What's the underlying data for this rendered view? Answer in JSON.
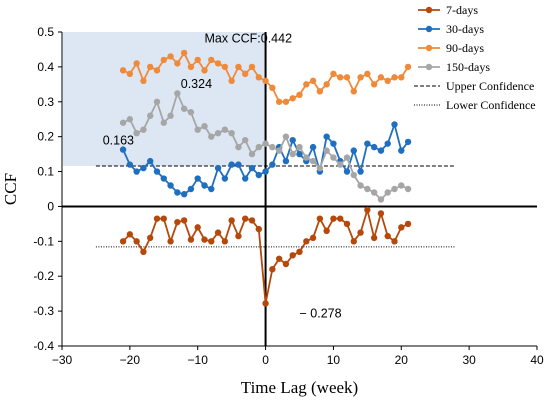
{
  "chart_data": {
    "type": "line",
    "xlabel": "Time  Lag (week)",
    "ylabel": "CCF",
    "xlim": [
      -30,
      40
    ],
    "ylim": [
      -0.4,
      0.5
    ],
    "xticks": [
      -30,
      -20,
      -10,
      0,
      10,
      20,
      30,
      40
    ],
    "xtick_labels": [
      "−30",
      "−20",
      "−10",
      "0",
      "10",
      "20",
      "30",
      "40"
    ],
    "yticks": [
      -0.4,
      -0.3,
      -0.2,
      -0.1,
      0,
      0.1,
      0.2,
      0.3,
      0.4,
      0.5
    ],
    "ytick_labels": [
      "-0.4",
      "-0.3",
      "-0.2",
      "-0.1",
      "0",
      "0.1",
      "0.2",
      "0.3",
      "0.4",
      "0.5"
    ],
    "grid": false,
    "legend_position": "top-right",
    "shaded_region": {
      "x": [
        -30,
        0
      ],
      "y": [
        0.116,
        0.5
      ],
      "color": "#dde7f4"
    },
    "series": [
      {
        "name": "7-days",
        "color": "#b5490c",
        "x": [
          -21,
          -20,
          -19,
          -18,
          -17,
          -16,
          -15,
          -14,
          -13,
          -12,
          -11,
          -10,
          -9,
          -8,
          -7,
          -6,
          -5,
          -4,
          -3,
          -2,
          -1,
          0,
          1,
          2,
          3,
          4,
          5,
          6,
          7,
          8,
          9,
          10,
          11,
          12,
          13,
          14,
          15,
          16,
          17,
          18,
          19,
          20,
          21
        ],
        "y": [
          -0.1,
          -0.08,
          -0.1,
          -0.13,
          -0.09,
          -0.035,
          -0.035,
          -0.1,
          -0.045,
          -0.04,
          -0.095,
          -0.06,
          -0.095,
          -0.1,
          -0.075,
          -0.1,
          -0.04,
          -0.085,
          -0.035,
          -0.04,
          -0.065,
          -0.278,
          -0.18,
          -0.15,
          -0.165,
          -0.14,
          -0.13,
          -0.1,
          -0.09,
          -0.035,
          -0.07,
          -0.035,
          -0.035,
          -0.05,
          -0.1,
          -0.075,
          -0.01,
          -0.09,
          -0.02,
          -0.085,
          -0.1,
          -0.06,
          -0.05
        ]
      },
      {
        "name": "30-days",
        "color": "#1f6fc1",
        "x": [
          -21,
          -20,
          -19,
          -18,
          -17,
          -16,
          -15,
          -14,
          -13,
          -12,
          -11,
          -10,
          -9,
          -8,
          -7,
          -6,
          -5,
          -4,
          -3,
          -2,
          -1,
          0,
          1,
          2,
          3,
          4,
          5,
          6,
          7,
          8,
          9,
          10,
          11,
          12,
          13,
          14,
          15,
          16,
          17,
          18,
          19,
          20,
          21
        ],
        "y": [
          0.163,
          0.12,
          0.1,
          0.11,
          0.13,
          0.1,
          0.08,
          0.06,
          0.04,
          0.035,
          0.05,
          0.08,
          0.06,
          0.05,
          0.11,
          0.08,
          0.12,
          0.12,
          0.08,
          0.11,
          0.09,
          0.1,
          0.12,
          0.17,
          0.13,
          0.19,
          0.15,
          0.13,
          0.17,
          0.1,
          0.2,
          0.18,
          0.13,
          0.1,
          0.16,
          0.1,
          0.18,
          0.17,
          0.16,
          0.18,
          0.235,
          0.16,
          0.185
        ]
      },
      {
        "name": "90-days",
        "color": "#ee8a3a",
        "x": [
          -21,
          -20,
          -19,
          -18,
          -17,
          -16,
          -15,
          -14,
          -13,
          -12,
          -11,
          -10,
          -9,
          -8,
          -7,
          -6,
          -5,
          -4,
          -3,
          -2,
          -1,
          0,
          1,
          2,
          3,
          4,
          5,
          6,
          7,
          8,
          9,
          10,
          11,
          12,
          13,
          14,
          15,
          16,
          17,
          18,
          19,
          20,
          21
        ],
        "y": [
          0.39,
          0.38,
          0.41,
          0.36,
          0.4,
          0.39,
          0.42,
          0.43,
          0.41,
          0.44,
          0.4,
          0.42,
          0.39,
          0.42,
          0.41,
          0.4,
          0.36,
          0.4,
          0.38,
          0.4,
          0.37,
          0.36,
          0.34,
          0.3,
          0.3,
          0.31,
          0.32,
          0.35,
          0.36,
          0.33,
          0.35,
          0.38,
          0.37,
          0.37,
          0.33,
          0.37,
          0.38,
          0.35,
          0.37,
          0.36,
          0.37,
          0.37,
          0.4
        ]
      },
      {
        "name": "150-days",
        "color": "#a6a6a6",
        "x": [
          -21,
          -20,
          -19,
          -18,
          -17,
          -16,
          -15,
          -14,
          -13,
          -12,
          -11,
          -10,
          -9,
          -8,
          -7,
          -6,
          -5,
          -4,
          -3,
          -2,
          -1,
          0,
          1,
          2,
          3,
          4,
          5,
          6,
          7,
          8,
          9,
          10,
          11,
          12,
          13,
          14,
          15,
          16,
          17,
          18,
          19,
          20,
          21
        ],
        "y": [
          0.24,
          0.25,
          0.21,
          0.22,
          0.26,
          0.3,
          0.24,
          0.26,
          0.324,
          0.28,
          0.27,
          0.22,
          0.23,
          0.2,
          0.21,
          0.22,
          0.21,
          0.17,
          0.19,
          0.15,
          0.17,
          0.18,
          0.17,
          0.16,
          0.2,
          0.15,
          0.17,
          0.14,
          0.13,
          0.11,
          0.16,
          0.14,
          0.12,
          0.14,
          0.09,
          0.06,
          0.05,
          0.04,
          0.02,
          0.04,
          0.05,
          0.06,
          0.05
        ]
      }
    ],
    "reference_lines": [
      {
        "name": "Upper Confidence",
        "y": 0.116,
        "x": [
          -25,
          28
        ],
        "style": "dashed",
        "color": "#000000"
      },
      {
        "name": "Lower Confidence",
        "y": -0.116,
        "x": [
          -25,
          28
        ],
        "style": "dotted",
        "color": "#000000"
      }
    ],
    "annotations": [
      {
        "text": "Max CCF:0.442",
        "x": -9,
        "y": 0.47
      },
      {
        "text": "0.324",
        "x": -12.5,
        "y": 0.34
      },
      {
        "text": "0.163",
        "x": -24,
        "y": 0.178
      },
      {
        "text": "− 0.278",
        "x": 5,
        "y": -0.318
      }
    ]
  }
}
